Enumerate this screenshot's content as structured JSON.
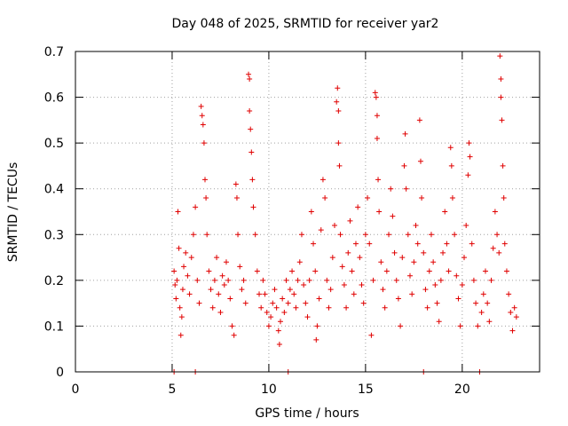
{
  "chart_data": {
    "type": "scatter",
    "title": "Day 048 of 2025, SRMTID for receiver yar2",
    "xlabel": "GPS time / hours",
    "ylabel": "SRMTID / TECUs",
    "xlim": [
      0,
      24
    ],
    "ylim": [
      0,
      0.7
    ],
    "xticks": [
      0,
      5,
      10,
      15,
      20
    ],
    "yticks": [
      0,
      0.1,
      0.2,
      0.3,
      0.4,
      0.5,
      0.6,
      0.7
    ],
    "xtick_labels": [
      "0",
      "5",
      "10",
      "15",
      "20"
    ],
    "ytick_labels": [
      "0",
      "0.1",
      "0.2",
      "0.3",
      "0.4",
      "0.5",
      "0.6",
      "0.7"
    ],
    "grid": true,
    "marker": "+",
    "color": "#e00000",
    "series": [
      {
        "name": "yar2",
        "points": [
          [
            5.1,
            0.0
          ],
          [
            5.1,
            0.22
          ],
          [
            5.15,
            0.19
          ],
          [
            5.2,
            0.16
          ],
          [
            5.25,
            0.2
          ],
          [
            5.3,
            0.35
          ],
          [
            5.35,
            0.27
          ],
          [
            5.4,
            0.14
          ],
          [
            5.45,
            0.08
          ],
          [
            5.5,
            0.12
          ],
          [
            5.55,
            0.18
          ],
          [
            5.6,
            0.23
          ],
          [
            5.7,
            0.26
          ],
          [
            5.8,
            0.21
          ],
          [
            5.9,
            0.17
          ],
          [
            6.0,
            0.25
          ],
          [
            6.1,
            0.3
          ],
          [
            6.2,
            0.36
          ],
          [
            6.2,
            0.0
          ],
          [
            6.3,
            0.2
          ],
          [
            6.4,
            0.15
          ],
          [
            6.5,
            0.58
          ],
          [
            6.55,
            0.56
          ],
          [
            6.6,
            0.54
          ],
          [
            6.65,
            0.5
          ],
          [
            6.7,
            0.42
          ],
          [
            6.75,
            0.38
          ],
          [
            6.8,
            0.3
          ],
          [
            6.9,
            0.22
          ],
          [
            7.0,
            0.18
          ],
          [
            7.1,
            0.14
          ],
          [
            7.2,
            0.2
          ],
          [
            7.3,
            0.25
          ],
          [
            7.4,
            0.17
          ],
          [
            7.5,
            0.13
          ],
          [
            7.6,
            0.21
          ],
          [
            7.7,
            0.19
          ],
          [
            7.8,
            0.24
          ],
          [
            7.9,
            0.2
          ],
          [
            8.0,
            0.16
          ],
          [
            8.1,
            0.1
          ],
          [
            8.2,
            0.08
          ],
          [
            8.3,
            0.41
          ],
          [
            8.35,
            0.38
          ],
          [
            8.4,
            0.3
          ],
          [
            8.5,
            0.23
          ],
          [
            8.6,
            0.18
          ],
          [
            8.7,
            0.2
          ],
          [
            8.8,
            0.15
          ],
          [
            8.95,
            0.65
          ],
          [
            9.0,
            0.64
          ],
          [
            9.0,
            0.57
          ],
          [
            9.05,
            0.53
          ],
          [
            9.1,
            0.48
          ],
          [
            9.15,
            0.42
          ],
          [
            9.2,
            0.36
          ],
          [
            9.3,
            0.3
          ],
          [
            9.4,
            0.22
          ],
          [
            9.5,
            0.17
          ],
          [
            9.6,
            0.14
          ],
          [
            9.7,
            0.2
          ],
          [
            9.8,
            0.17
          ],
          [
            9.9,
            0.13
          ],
          [
            10.0,
            0.1
          ],
          [
            10.1,
            0.12
          ],
          [
            10.2,
            0.15
          ],
          [
            10.3,
            0.18
          ],
          [
            10.4,
            0.14
          ],
          [
            10.5,
            0.09
          ],
          [
            10.55,
            0.06
          ],
          [
            10.6,
            0.11
          ],
          [
            10.7,
            0.16
          ],
          [
            10.8,
            0.13
          ],
          [
            10.9,
            0.2
          ],
          [
            11.0,
            0.15
          ],
          [
            11.0,
            0.0
          ],
          [
            11.1,
            0.18
          ],
          [
            11.2,
            0.22
          ],
          [
            11.3,
            0.17
          ],
          [
            11.4,
            0.14
          ],
          [
            11.5,
            0.2
          ],
          [
            11.6,
            0.24
          ],
          [
            11.7,
            0.3
          ],
          [
            11.8,
            0.19
          ],
          [
            11.9,
            0.15
          ],
          [
            12.0,
            0.12
          ],
          [
            12.1,
            0.2
          ],
          [
            12.2,
            0.35
          ],
          [
            12.3,
            0.28
          ],
          [
            12.4,
            0.22
          ],
          [
            12.45,
            0.07
          ],
          [
            12.5,
            0.1
          ],
          [
            12.6,
            0.16
          ],
          [
            12.7,
            0.31
          ],
          [
            12.8,
            0.42
          ],
          [
            12.9,
            0.38
          ],
          [
            13.0,
            0.2
          ],
          [
            13.1,
            0.14
          ],
          [
            13.2,
            0.18
          ],
          [
            13.3,
            0.25
          ],
          [
            13.4,
            0.32
          ],
          [
            13.5,
            0.59
          ],
          [
            13.55,
            0.62
          ],
          [
            13.6,
            0.57
          ],
          [
            13.6,
            0.5
          ],
          [
            13.65,
            0.45
          ],
          [
            13.7,
            0.3
          ],
          [
            13.8,
            0.23
          ],
          [
            13.9,
            0.19
          ],
          [
            14.0,
            0.14
          ],
          [
            14.1,
            0.26
          ],
          [
            14.2,
            0.33
          ],
          [
            14.3,
            0.22
          ],
          [
            14.4,
            0.17
          ],
          [
            14.5,
            0.28
          ],
          [
            14.6,
            0.36
          ],
          [
            14.7,
            0.25
          ],
          [
            14.8,
            0.19
          ],
          [
            14.9,
            0.15
          ],
          [
            15.0,
            0.3
          ],
          [
            15.1,
            0.38
          ],
          [
            15.2,
            0.28
          ],
          [
            15.3,
            0.08
          ],
          [
            15.4,
            0.2
          ],
          [
            15.5,
            0.61
          ],
          [
            15.55,
            0.6
          ],
          [
            15.6,
            0.56
          ],
          [
            15.6,
            0.51
          ],
          [
            15.65,
            0.42
          ],
          [
            15.7,
            0.35
          ],
          [
            15.8,
            0.24
          ],
          [
            15.9,
            0.18
          ],
          [
            16.0,
            0.14
          ],
          [
            16.1,
            0.22
          ],
          [
            16.2,
            0.3
          ],
          [
            16.3,
            0.4
          ],
          [
            16.4,
            0.34
          ],
          [
            16.5,
            0.26
          ],
          [
            16.6,
            0.2
          ],
          [
            16.7,
            0.16
          ],
          [
            16.8,
            0.1
          ],
          [
            16.9,
            0.25
          ],
          [
            17.0,
            0.45
          ],
          [
            17.05,
            0.52
          ],
          [
            17.1,
            0.4
          ],
          [
            17.2,
            0.3
          ],
          [
            17.3,
            0.21
          ],
          [
            17.4,
            0.17
          ],
          [
            17.5,
            0.24
          ],
          [
            17.6,
            0.32
          ],
          [
            17.7,
            0.28
          ],
          [
            17.8,
            0.55
          ],
          [
            17.85,
            0.46
          ],
          [
            17.9,
            0.38
          ],
          [
            18.0,
            0.0
          ],
          [
            18.0,
            0.26
          ],
          [
            18.1,
            0.18
          ],
          [
            18.2,
            0.14
          ],
          [
            18.3,
            0.22
          ],
          [
            18.4,
            0.3
          ],
          [
            18.5,
            0.24
          ],
          [
            18.6,
            0.19
          ],
          [
            18.7,
            0.15
          ],
          [
            18.8,
            0.11
          ],
          [
            18.9,
            0.2
          ],
          [
            19.0,
            0.26
          ],
          [
            19.1,
            0.35
          ],
          [
            19.2,
            0.28
          ],
          [
            19.3,
            0.22
          ],
          [
            19.4,
            0.49
          ],
          [
            19.45,
            0.45
          ],
          [
            19.5,
            0.38
          ],
          [
            19.6,
            0.3
          ],
          [
            19.7,
            0.21
          ],
          [
            19.8,
            0.16
          ],
          [
            19.9,
            0.1
          ],
          [
            20.0,
            0.19
          ],
          [
            20.1,
            0.25
          ],
          [
            20.2,
            0.32
          ],
          [
            20.3,
            0.43
          ],
          [
            20.35,
            0.5
          ],
          [
            20.4,
            0.47
          ],
          [
            20.5,
            0.28
          ],
          [
            20.6,
            0.2
          ],
          [
            20.7,
            0.15
          ],
          [
            20.8,
            0.1
          ],
          [
            20.9,
            0.0
          ],
          [
            21.0,
            0.13
          ],
          [
            21.1,
            0.17
          ],
          [
            21.2,
            0.22
          ],
          [
            21.3,
            0.15
          ],
          [
            21.4,
            0.11
          ],
          [
            21.5,
            0.2
          ],
          [
            21.6,
            0.27
          ],
          [
            21.7,
            0.35
          ],
          [
            21.8,
            0.3
          ],
          [
            21.9,
            0.26
          ],
          [
            21.95,
            0.69
          ],
          [
            22.0,
            0.64
          ],
          [
            22.0,
            0.6
          ],
          [
            22.05,
            0.55
          ],
          [
            22.1,
            0.45
          ],
          [
            22.15,
            0.38
          ],
          [
            22.2,
            0.28
          ],
          [
            22.3,
            0.22
          ],
          [
            22.4,
            0.17
          ],
          [
            22.5,
            0.13
          ],
          [
            22.6,
            0.09
          ],
          [
            22.7,
            0.14
          ],
          [
            22.8,
            0.12
          ]
        ]
      }
    ]
  }
}
